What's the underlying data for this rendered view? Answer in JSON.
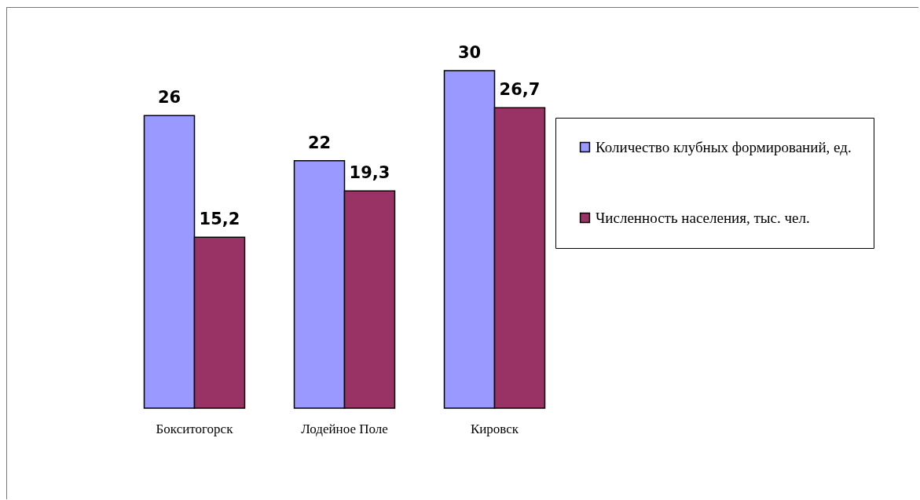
{
  "chart_data": {
    "type": "bar",
    "categories": [
      "Бокситогорск",
      "Лодейное Поле",
      "Кировск"
    ],
    "series": [
      {
        "name": "Количество клубных формирований, ед.",
        "color": "#9999ff",
        "values": [
          26,
          22,
          30
        ],
        "value_labels": [
          "26",
          "22",
          "30"
        ]
      },
      {
        "name": "Численность населения, тыс. чел.",
        "color": "#993366",
        "values": [
          15.2,
          19.3,
          26.7
        ],
        "value_labels": [
          "15,2",
          "19,3",
          "26,7"
        ]
      }
    ],
    "legend": "right"
  }
}
